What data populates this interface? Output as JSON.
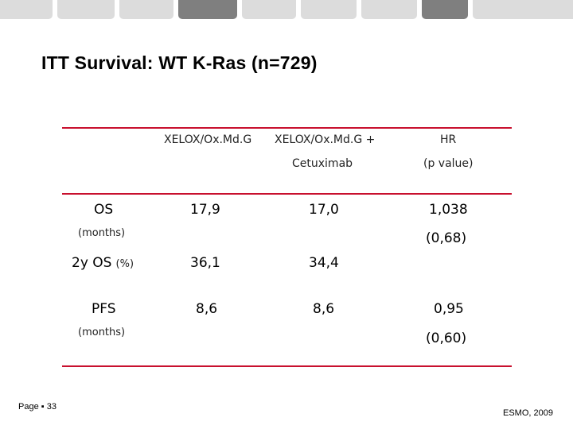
{
  "colors": {
    "rule": "#c8102e",
    "tabs": [
      "#dcdcdc",
      "#dcdcdc",
      "#dcdcdc",
      "#7f7f7f",
      "#dcdcdc",
      "#dcdcdc",
      "#dcdcdc",
      "#7f7f7f",
      "#dcdcdc"
    ]
  },
  "slide": {
    "title": "ITT Survival:  WT K-Ras (n=729)"
  },
  "table": {
    "headers": {
      "col1": "XELOX/Ox.Md.G",
      "col2_line1": "XELOX/Ox.Md.G +",
      "col2_line2": "Cetuximab",
      "col3_line1": "HR",
      "col3_line2": "(p value)"
    },
    "rows": {
      "os": {
        "label": "OS",
        "sublabel": "(months)",
        "c1": "17,9",
        "c2": "17,0",
        "hr": "1,038",
        "p": "(0,68)"
      },
      "os2y": {
        "label": "2y OS",
        "label_unit": "(%)",
        "c1": "36,1",
        "c2": "34,4"
      },
      "pfs": {
        "label": "PFS",
        "sublabel": "(months)",
        "c1": "8,6",
        "c2": "8,6",
        "hr": "0,95",
        "p": "(0,60)"
      }
    }
  },
  "footer": {
    "page": "Page ▪ 33",
    "source": "ESMO, 2009"
  }
}
